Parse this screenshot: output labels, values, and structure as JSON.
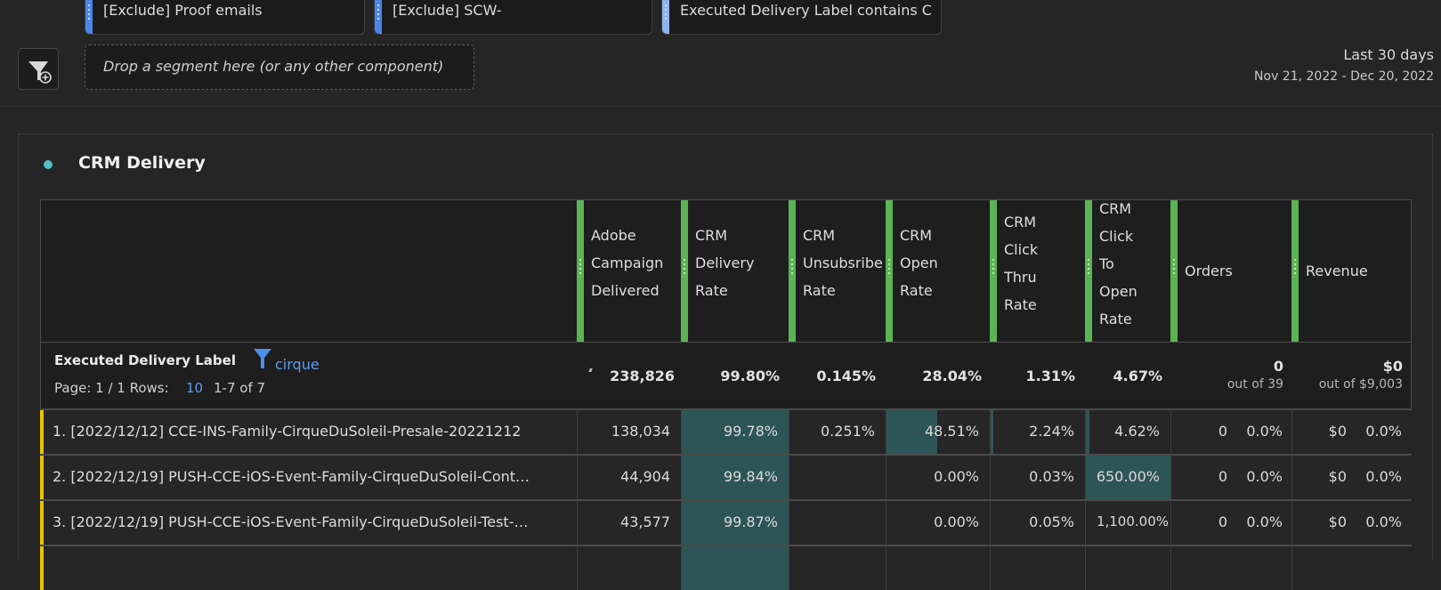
{
  "segments": [
    {
      "label": "[Exclude] Proof emails"
    },
    {
      "label": "[Exclude] SCW-"
    },
    {
      "label": "Executed Delivery Label contains C"
    }
  ],
  "drop_zone": {
    "placeholder": "Drop a segment here (or any other component)"
  },
  "date_range": {
    "preset": "Last 30 days",
    "range": "Nov 21, 2022 - Dec 20, 2022"
  },
  "panel": {
    "title": "CRM Delivery",
    "dot_color": "#4fc1c9"
  },
  "table": {
    "dimension": {
      "label": "Executed Delivery Label",
      "filter_value": "cirque"
    },
    "pagination": {
      "page_label": "Page: 1 / 1 Rows:",
      "rows": "10",
      "range": "1-7 of 7"
    },
    "columns": [
      {
        "lines": [
          "Adobe",
          "Campaign",
          "Delivered"
        ]
      },
      {
        "lines": [
          "CRM",
          "Delivery",
          "Rate"
        ]
      },
      {
        "lines": [
          "CRM",
          "Unsubsribe",
          "Rate"
        ]
      },
      {
        "lines": [
          "CRM",
          "Open",
          "Rate"
        ]
      },
      {
        "lines": [
          "CRM",
          "Click",
          "Thru",
          "Rate"
        ]
      },
      {
        "lines": [
          "CRM",
          "Click",
          "To",
          "Open",
          "Rate"
        ]
      },
      {
        "lines": [
          "Orders"
        ]
      },
      {
        "lines": [
          "Revenue"
        ]
      }
    ],
    "totals": {
      "delivered": "238,826",
      "delivery_rate": "99.80%",
      "unsub_rate": "0.145%",
      "open_rate": "28.04%",
      "ctr": "1.31%",
      "ctor": "4.67%",
      "orders": "0",
      "orders_sub": "out of 39",
      "revenue": "$0",
      "revenue_sub": "out of $9,003"
    },
    "rows": [
      {
        "label": "1.  [2022/12/12] CCE-INS-Family-CirqueDuSoleil-Presale-20221212",
        "delivered": "138,034",
        "delivery_rate": "99.78%",
        "unsub_rate": "0.251%",
        "open_rate": "48.51%",
        "ctr": "2.24%",
        "ctor": "4.62%",
        "orders": "0",
        "orders_pct": "0.0%",
        "revenue": "$0",
        "revenue_pct": "0.0%",
        "open_fill": 0.49,
        "ctr_fill": 0.02,
        "ctor_fill": 0.04
      },
      {
        "label": "2.  [2022/12/19] PUSH-CCE-iOS-Event-Family-CirqueDuSoleil-Cont…",
        "delivered": "44,904",
        "delivery_rate": "99.84%",
        "unsub_rate": "",
        "open_rate": "0.00%",
        "ctr": "0.03%",
        "ctor": "650.00%",
        "orders": "0",
        "orders_pct": "0.0%",
        "revenue": "$0",
        "revenue_pct": "0.0%"
      },
      {
        "label": "3.  [2022/12/19] PUSH-CCE-iOS-Event-Family-CirqueDuSoleil-Test-…",
        "delivered": "43,577",
        "delivery_rate": "99.87%",
        "unsub_rate": "",
        "open_rate": "0.00%",
        "ctr": "0.05%",
        "ctor": "1,100.00%",
        "orders": "0",
        "orders_pct": "0.0%",
        "revenue": "$0",
        "revenue_pct": "0.0%"
      }
    ]
  }
}
